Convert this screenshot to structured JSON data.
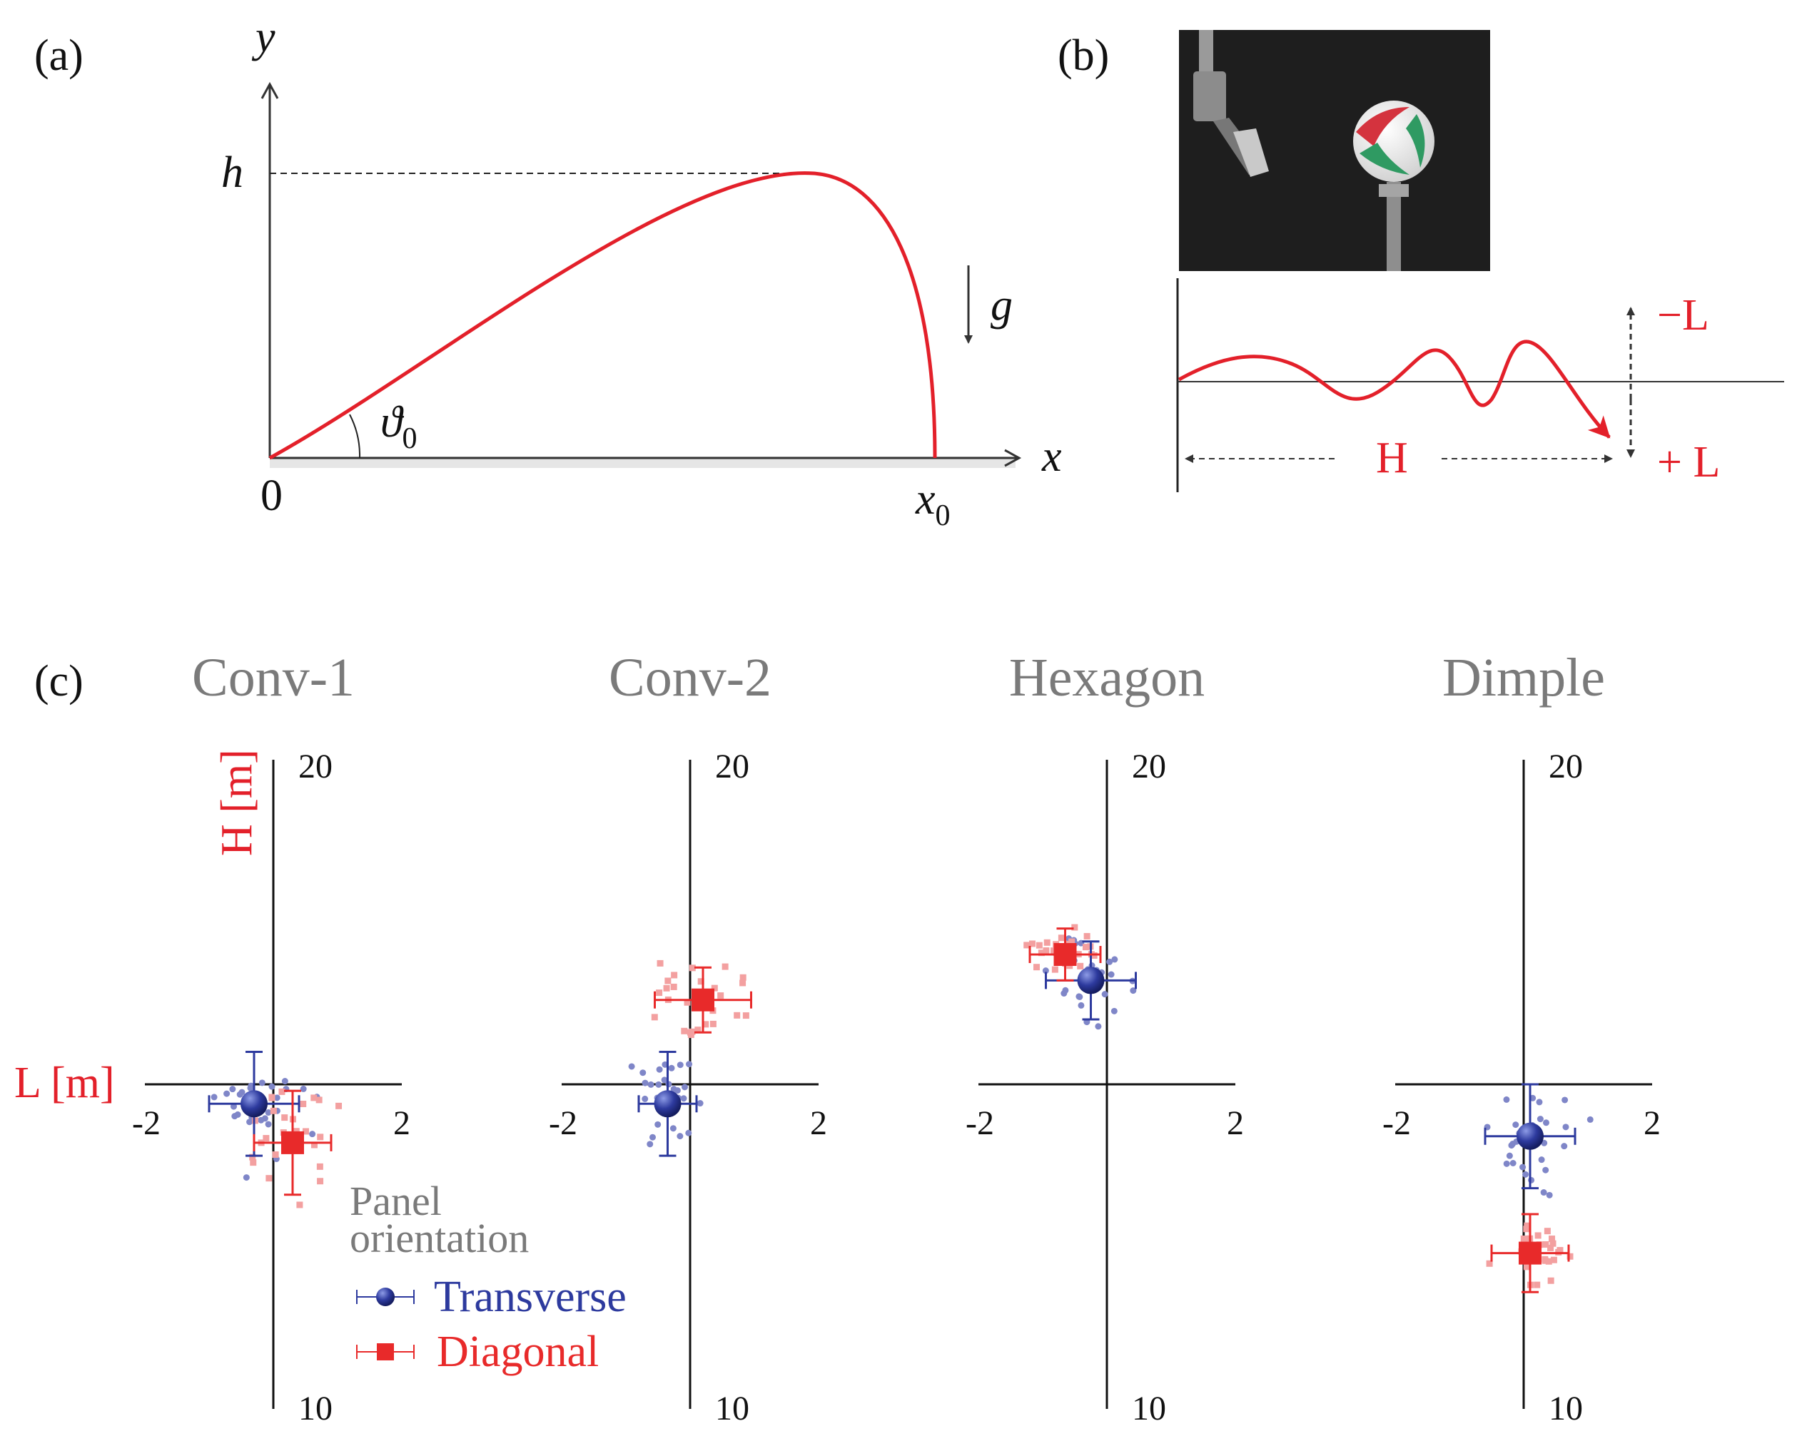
{
  "panel_a": {
    "label": "(a)",
    "y_axis": "y",
    "x_axis": "x",
    "h_label": "h",
    "g_label": "g",
    "theta_label": "ϑ",
    "theta_sub": "0",
    "origin_label": "0",
    "x0_label": "x",
    "x0_sub": "0",
    "colors": {
      "trajectory": "#e3202a",
      "axis": "#333333"
    }
  },
  "panel_b": {
    "label": "(b)",
    "minus_L": "−L",
    "plus_L": "+ L",
    "H_label": "H",
    "photo_desc": "robot-arm-and-volleyball-photo",
    "colors": {
      "curve": "#e3202a",
      "background": "#1e1e1e"
    }
  },
  "panel_c": {
    "label": "(c)",
    "ylabel": "H [m]",
    "xlabel": "L [m]",
    "legend_title_line1": "Panel",
    "legend_title_line2": "orientation",
    "legend_transverse": "Transverse",
    "legend_diagonal": "Diagonal",
    "colors": {
      "transverse": "#2d3a9e",
      "diagonal": "#e82a2a",
      "transverse_light": "#7f86c8",
      "diagonal_light": "#f3a0a0",
      "title": "#7a7a7a"
    }
  },
  "chart_data": [
    {
      "type": "scatter",
      "title": "Conv-1",
      "xlim": [
        -2,
        2
      ],
      "ylim": [
        10,
        20
      ],
      "x_ticks": [
        "-2",
        "2"
      ],
      "y_ticks": [
        "20",
        "10"
      ],
      "series": [
        {
          "name": "Transverse",
          "mean": {
            "x": -0.3,
            "y": 14.7
          },
          "xerr": 0.7,
          "yerr": 0.8
        },
        {
          "name": "Diagonal",
          "mean": {
            "x": 0.3,
            "y": 14.1
          },
          "xerr": 0.6,
          "yerr": 0.8
        }
      ]
    },
    {
      "type": "scatter",
      "title": "Conv-2",
      "xlim": [
        -2,
        2
      ],
      "ylim": [
        10,
        20
      ],
      "x_ticks": [
        "-2",
        "2"
      ],
      "y_ticks": [
        "20",
        "10"
      ],
      "series": [
        {
          "name": "Transverse",
          "mean": {
            "x": -0.35,
            "y": 14.7
          },
          "xerr": 0.45,
          "yerr": 0.8
        },
        {
          "name": "Diagonal",
          "mean": {
            "x": 0.2,
            "y": 16.3
          },
          "xerr": 0.75,
          "yerr": 0.5
        }
      ]
    },
    {
      "type": "scatter",
      "title": "Hexagon",
      "xlim": [
        -2,
        2
      ],
      "ylim": [
        10,
        20
      ],
      "x_ticks": [
        "-2",
        "2"
      ],
      "y_ticks": [
        "20",
        "10"
      ],
      "series": [
        {
          "name": "Transverse",
          "mean": {
            "x": -0.25,
            "y": 16.6
          },
          "xerr": 0.7,
          "yerr": 0.6
        },
        {
          "name": "Diagonal",
          "mean": {
            "x": -0.65,
            "y": 17.0
          },
          "xerr": 0.55,
          "yerr": 0.4
        }
      ]
    },
    {
      "type": "scatter",
      "title": "Dimple",
      "xlim": [
        -2,
        2
      ],
      "ylim": [
        10,
        20
      ],
      "x_ticks": [
        "-2",
        "2"
      ],
      "y_ticks": [
        "20",
        "10"
      ],
      "series": [
        {
          "name": "Transverse",
          "mean": {
            "x": 0.1,
            "y": 14.2
          },
          "xerr": 0.7,
          "yerr": 0.8
        },
        {
          "name": "Diagonal",
          "mean": {
            "x": 0.1,
            "y": 12.4
          },
          "xerr": 0.6,
          "yerr": 0.6
        }
      ]
    }
  ]
}
